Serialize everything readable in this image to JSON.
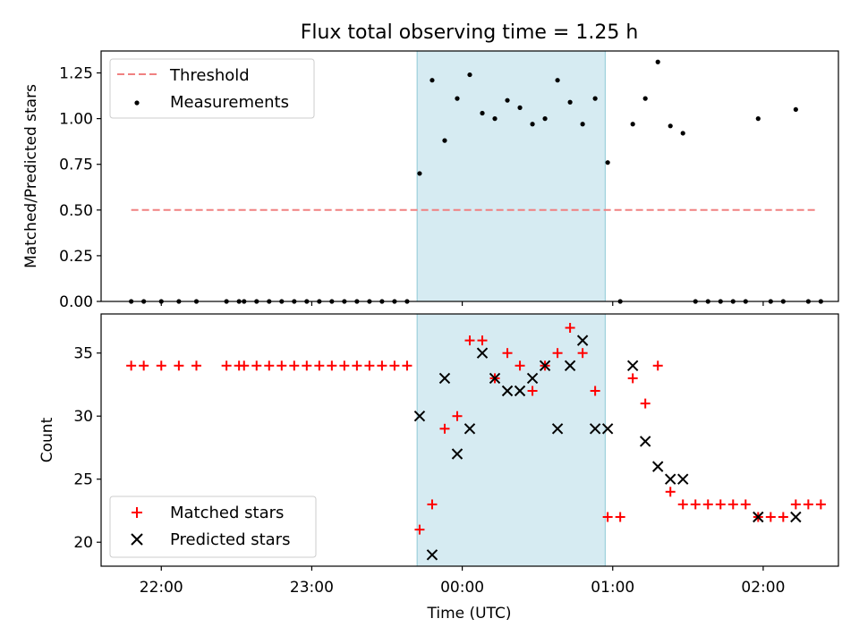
{
  "chart_data": [
    {
      "type": "scatter",
      "title": "Flux total observing time = 1.25 h",
      "xlabel": "",
      "ylabel": "Matched/Predicted stars",
      "xlim": [
        "21:36",
        "02:30"
      ],
      "ylim": [
        0,
        1.37
      ],
      "yticks": [
        0.0,
        0.25,
        0.5,
        0.75,
        1.0,
        1.25
      ],
      "ytick_labels": [
        "0.00",
        "0.25",
        "0.50",
        "0.75",
        "1.00",
        "1.25"
      ],
      "shaded_interval": [
        "23:42",
        "00:57"
      ],
      "legend_position": "upper left",
      "series": [
        {
          "name": "Threshold",
          "style": "dashed-line",
          "color": "#f08080",
          "x": [
            "21:48",
            "02:22"
          ],
          "y": [
            0.5,
            0.5
          ]
        },
        {
          "name": "Measurements",
          "style": "dot",
          "color": "#000000",
          "x": [
            "21:48",
            "21:53",
            "22:00",
            "22:07",
            "22:14",
            "22:26",
            "22:31",
            "22:33",
            "22:38",
            "22:43",
            "22:48",
            "22:53",
            "22:58",
            "23:03",
            "23:08",
            "23:13",
            "23:18",
            "23:23",
            "23:28",
            "23:33",
            "23:38",
            "23:43",
            "23:48",
            "23:53",
            "23:58",
            "00:03",
            "00:08",
            "00:13",
            "00:18",
            "00:23",
            "00:28",
            "00:33",
            "00:38",
            "00:43",
            "00:48",
            "00:53",
            "00:58",
            "01:03",
            "01:08",
            "01:13",
            "01:18",
            "01:23",
            "01:28",
            "01:33",
            "01:38",
            "01:43",
            "01:48",
            "01:53",
            "01:58",
            "02:03",
            "02:08",
            "02:13",
            "02:18",
            "02:23"
          ],
          "y": [
            0.0,
            0.0,
            0.0,
            0.0,
            0.0,
            0.0,
            0.0,
            0.0,
            0.0,
            0.0,
            0.0,
            0.0,
            0.0,
            0.0,
            0.0,
            0.0,
            0.0,
            0.0,
            0.0,
            0.0,
            0.0,
            0.7,
            1.21,
            0.88,
            1.11,
            1.24,
            1.03,
            1.0,
            1.1,
            1.06,
            0.97,
            1.0,
            1.21,
            1.09,
            0.97,
            1.11,
            0.76,
            0.0,
            0.97,
            1.11,
            1.31,
            0.96,
            0.92,
            0.0,
            0.0,
            0.0,
            0.0,
            0.0,
            1.0,
            0.0,
            0.0,
            1.05,
            0.0,
            0.0
          ]
        }
      ]
    },
    {
      "type": "scatter",
      "title": "",
      "xlabel": "Time (UTC)",
      "ylabel": "Count",
      "xlim": [
        "21:36",
        "02:30"
      ],
      "ylim": [
        18.1,
        38.1
      ],
      "yticks": [
        20,
        25,
        30,
        35
      ],
      "ytick_labels": [
        "20",
        "25",
        "30",
        "35"
      ],
      "xticks": [
        "22:00",
        "23:00",
        "00:00",
        "01:00",
        "02:00"
      ],
      "shaded_interval": [
        "23:42",
        "00:57"
      ],
      "legend_position": "lower left",
      "series": [
        {
          "name": "Matched stars",
          "marker": "plus",
          "color": "#ff0000",
          "x": [
            "21:48",
            "21:53",
            "22:00",
            "22:07",
            "22:14",
            "22:26",
            "22:31",
            "22:33",
            "22:38",
            "22:43",
            "22:48",
            "22:53",
            "22:58",
            "23:03",
            "23:08",
            "23:13",
            "23:18",
            "23:23",
            "23:28",
            "23:33",
            "23:38",
            "23:43",
            "23:48",
            "23:53",
            "23:58",
            "00:03",
            "00:08",
            "00:13",
            "00:18",
            "00:23",
            "00:28",
            "00:33",
            "00:38",
            "00:43",
            "00:48",
            "00:53",
            "00:58",
            "01:03",
            "01:08",
            "01:13",
            "01:18",
            "01:23",
            "01:28",
            "01:33",
            "01:38",
            "01:43",
            "01:48",
            "01:53",
            "01:58",
            "02:03",
            "02:08",
            "02:13",
            "02:18",
            "02:23"
          ],
          "y": [
            34,
            34,
            34,
            34,
            34,
            34,
            34,
            34,
            34,
            34,
            34,
            34,
            34,
            34,
            34,
            34,
            34,
            34,
            34,
            34,
            34,
            21,
            23,
            29,
            30,
            36,
            36,
            33,
            35,
            34,
            32,
            34,
            35,
            37,
            35,
            32,
            22,
            22,
            33,
            31,
            34,
            24,
            23,
            23,
            23,
            23,
            23,
            23,
            22,
            22,
            22,
            23,
            23,
            23
          ]
        },
        {
          "name": "Predicted stars",
          "marker": "x",
          "color": "#000000",
          "x": [
            "23:43",
            "23:48",
            "23:53",
            "23:58",
            "00:03",
            "00:08",
            "00:13",
            "00:18",
            "00:23",
            "00:28",
            "00:33",
            "00:38",
            "00:43",
            "00:48",
            "00:53",
            "00:58",
            "01:08",
            "01:13",
            "01:18",
            "01:23",
            "01:28",
            "01:58",
            "02:13"
          ],
          "y": [
            30,
            19,
            33,
            27,
            29,
            35,
            33,
            32,
            32,
            33,
            34,
            29,
            34,
            36,
            29,
            29,
            34,
            28,
            26,
            25,
            25,
            22,
            22
          ]
        }
      ]
    }
  ]
}
